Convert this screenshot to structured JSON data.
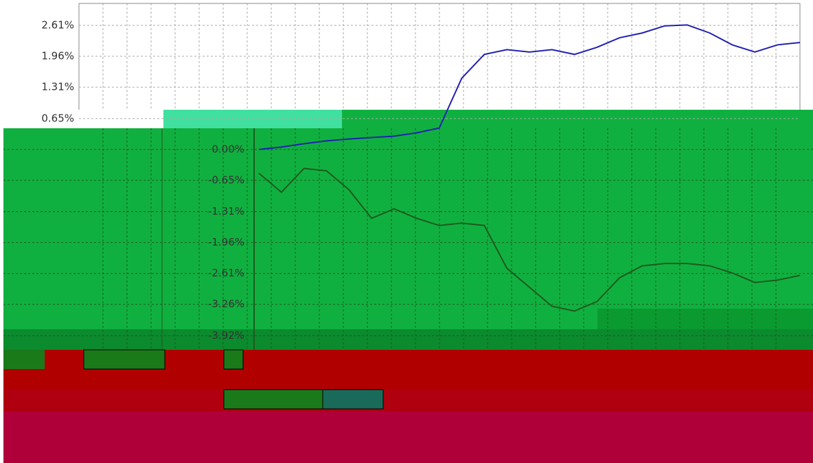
{
  "chart_data": {
    "type": "line",
    "categories": [
      null,
      null,
      null,
      null,
      null,
      null,
      null,
      null,
      null,
      null,
      null,
      null,
      null,
      null,
      null,
      null,
      null,
      null,
      null,
      null,
      null,
      null,
      null,
      null,
      null
    ],
    "series": [
      {
        "color": "#2020b0",
        "values": [
          0.0,
          0.05,
          0.12,
          0.18,
          0.22,
          0.25,
          0.28,
          0.35,
          0.45,
          1.5,
          2.0,
          2.1,
          2.05,
          2.1,
          2.0,
          2.15,
          2.35,
          2.45,
          2.6,
          2.62,
          2.45,
          2.2,
          2.05,
          2.2,
          2.25
        ]
      },
      {
        "color": "#1d5a1d",
        "values": [
          -0.5,
          -0.9,
          -0.4,
          -0.45,
          -0.85,
          -1.45,
          -1.25,
          -1.45,
          -1.6,
          -1.55,
          -1.6,
          -2.5,
          -2.9,
          -3.3,
          -3.4,
          -3.2,
          -2.7,
          -2.45,
          -2.4,
          -2.4,
          -2.45,
          -2.6,
          -2.8,
          -2.75,
          -2.65
        ]
      }
    ],
    "ylim": [
      -4.0,
      3.0
    ],
    "yticks": [
      {
        "value": 2.61,
        "label": "2.61%"
      },
      {
        "value": 1.96,
        "label": "1.96%"
      },
      {
        "value": 1.31,
        "label": "1.31%"
      },
      {
        "value": 0.65,
        "label": "0.65%"
      },
      {
        "value": 0.0,
        "label": "0.00%"
      },
      {
        "value": -0.65,
        "label": "-0.65%"
      },
      {
        "value": -1.31,
        "label": "-1.31%"
      },
      {
        "value": -1.96,
        "label": "-1.96%"
      },
      {
        "value": -2.61,
        "label": "-2.61%"
      },
      {
        "value": -3.26,
        "label": "-3.26%"
      },
      {
        "value": -3.92,
        "label": "-3.92%"
      }
    ],
    "grid": true
  }
}
